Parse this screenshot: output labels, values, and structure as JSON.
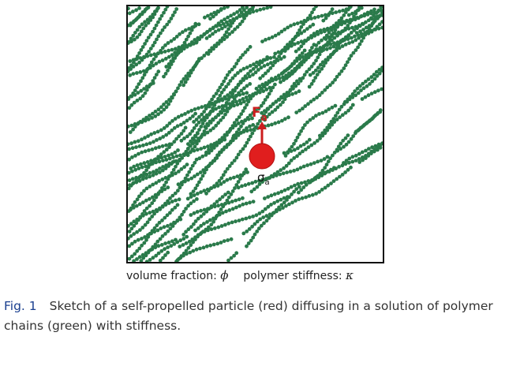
{
  "figure": {
    "force_label_main": "F",
    "force_label_sub": "a",
    "size_label_main": "σ",
    "size_label_sub": "a",
    "colors": {
      "chain": "#2a7a4a",
      "particle": "#e01e1e",
      "force": "#cc1e1e",
      "border": "#111111"
    }
  },
  "sub_caption": {
    "volume_text": "volume fraction:",
    "volume_symbol": "ϕ",
    "stiffness_text": "polymer stiffness:",
    "stiffness_symbol": "κ"
  },
  "caption": {
    "label": "Fig. 1",
    "text": "Sketch of a self-propelled particle (red) diffusing in a solution of polymer chains (green) with stiffness."
  }
}
